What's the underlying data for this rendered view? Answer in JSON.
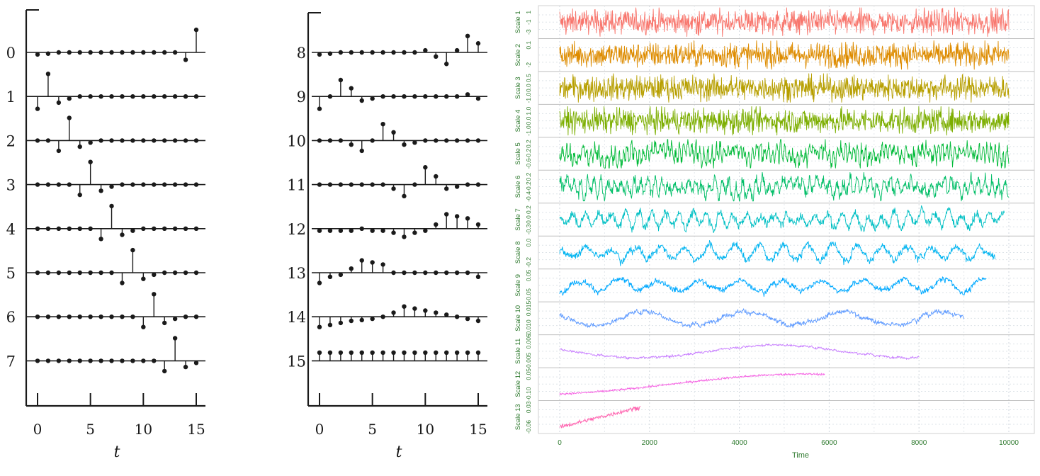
{
  "chart_data": [
    {
      "type": "stem",
      "xlabel": "t",
      "x_ticks": [
        0,
        5,
        10,
        15
      ],
      "x": [
        0,
        1,
        2,
        3,
        4,
        5,
        6,
        7,
        8,
        9,
        10,
        11,
        12,
        13,
        14,
        15
      ],
      "series": [
        {
          "label": "0",
          "values": [
            -0.05,
            -0.03,
            0,
            0,
            0,
            0,
            0,
            0,
            0,
            0,
            0,
            0,
            0,
            0,
            -0.18,
            0.55
          ]
        },
        {
          "label": "1",
          "values": [
            -0.3,
            0.55,
            -0.15,
            -0.05,
            0,
            0,
            0,
            0,
            0,
            0,
            0,
            0,
            0,
            0,
            0,
            0
          ]
        },
        {
          "label": "2",
          "values": [
            0,
            0,
            -0.25,
            0.55,
            -0.15,
            -0.05,
            0,
            0,
            0,
            0,
            0,
            0,
            0,
            0,
            0,
            0
          ]
        },
        {
          "label": "3",
          "values": [
            0,
            0,
            0,
            0,
            -0.25,
            0.55,
            -0.15,
            -0.05,
            0,
            0,
            0,
            0,
            0,
            0,
            0,
            0
          ]
        },
        {
          "label": "4",
          "values": [
            0,
            0,
            0,
            0,
            0,
            0,
            -0.25,
            0.55,
            -0.15,
            -0.05,
            0,
            0,
            0,
            0,
            0,
            0
          ]
        },
        {
          "label": "5",
          "values": [
            0,
            0,
            0,
            0,
            0,
            0,
            0,
            0,
            -0.25,
            0.55,
            -0.15,
            -0.05,
            0,
            0,
            0,
            0
          ]
        },
        {
          "label": "6",
          "values": [
            0,
            0,
            0,
            0,
            0,
            0,
            0,
            0,
            0,
            0,
            -0.25,
            0.55,
            -0.15,
            -0.05,
            0,
            0
          ]
        },
        {
          "label": "7",
          "values": [
            0,
            0,
            0,
            0,
            0,
            0,
            0,
            0,
            0,
            0,
            0,
            0,
            -0.25,
            0.55,
            -0.15,
            -0.05
          ]
        }
      ]
    },
    {
      "type": "stem",
      "xlabel": "t",
      "x_ticks": [
        0,
        5,
        10,
        15
      ],
      "x": [
        0,
        1,
        2,
        3,
        4,
        5,
        6,
        7,
        8,
        9,
        10,
        11,
        12,
        13,
        14,
        15
      ],
      "series": [
        {
          "label": "8",
          "values": [
            -0.05,
            -0.03,
            0,
            0,
            0,
            0,
            0,
            0,
            0,
            0,
            0.05,
            -0.1,
            -0.28,
            0.05,
            0.4,
            0.22
          ]
        },
        {
          "label": "9",
          "values": [
            -0.3,
            0,
            0.4,
            0.2,
            -0.1,
            -0.05,
            0,
            0,
            0,
            0,
            0,
            0,
            0,
            0,
            0.05,
            -0.05
          ]
        },
        {
          "label": "10",
          "values": [
            0,
            0,
            0,
            -0.1,
            -0.25,
            0,
            0.4,
            0.2,
            -0.1,
            -0.05,
            0,
            0,
            0,
            0,
            0,
            0
          ]
        },
        {
          "label": "11",
          "values": [
            0,
            0,
            0,
            0,
            0,
            0,
            0,
            -0.1,
            -0.28,
            0,
            0.42,
            0.2,
            -0.1,
            -0.05,
            0,
            0
          ]
        },
        {
          "label": "12",
          "values": [
            -0.05,
            -0.05,
            -0.05,
            -0.05,
            0,
            -0.05,
            -0.05,
            -0.1,
            -0.2,
            -0.1,
            -0.05,
            0.1,
            0.35,
            0.3,
            0.25,
            0.1
          ]
        },
        {
          "label": "13",
          "values": [
            -0.25,
            -0.1,
            -0.05,
            0.1,
            0.3,
            0.25,
            0.2,
            0,
            0,
            0,
            0,
            0,
            0,
            0,
            0,
            -0.1
          ]
        },
        {
          "label": "14",
          "values": [
            -0.25,
            -0.2,
            -0.15,
            -0.1,
            -0.08,
            -0.05,
            0,
            0.1,
            0.25,
            0.2,
            0.15,
            0.1,
            0.05,
            0,
            -0.05,
            -0.1
          ]
        },
        {
          "label": "15",
          "values": [
            0.2,
            0.2,
            0.2,
            0.2,
            0.2,
            0.2,
            0.2,
            0.2,
            0.2,
            0.2,
            0.2,
            0.2,
            0.2,
            0.2,
            0.2,
            0.2
          ]
        }
      ]
    },
    {
      "type": "line",
      "xlabel": "Time",
      "xlim": [
        0,
        10000
      ],
      "x_ticks": [
        "0",
        "2000",
        "4000",
        "6000",
        "8000",
        "10000"
      ],
      "grid": true,
      "series": [
        {
          "name": "Scale 1",
          "color": "#f8766d",
          "length": 10000,
          "period": 0,
          "noise": 1.0,
          "y_ticks": [
            "1",
            "-1",
            "-3"
          ]
        },
        {
          "name": "Scale 2",
          "color": "#de8c00",
          "length": 10000,
          "period": 0,
          "noise": 1.0,
          "y_ticks": [
            "0.1",
            "-2"
          ]
        },
        {
          "name": "Scale 3",
          "color": "#b79f00",
          "length": 10000,
          "period": 0,
          "noise": 0.9,
          "y_ticks": [
            "0.5",
            "0.0",
            "-1.0"
          ]
        },
        {
          "name": "Scale 4",
          "color": "#7cae00",
          "length": 10000,
          "period": 0,
          "noise": 0.9,
          "y_ticks": [
            "1.0",
            "0.0",
            "-1.0"
          ]
        },
        {
          "name": "Scale 5",
          "color": "#00ba38",
          "length": 10000,
          "period": 90,
          "noise": 0.8,
          "y_ticks": [
            "0.2",
            "-0.2",
            "-0.6"
          ]
        },
        {
          "name": "Scale 6",
          "color": "#00be67",
          "length": 10000,
          "period": 150,
          "noise": 0.7,
          "y_ticks": [
            "0.2",
            "-0.2",
            "-0.4"
          ]
        },
        {
          "name": "Scale 7",
          "color": "#00bfc4",
          "length": 9900,
          "period": 300,
          "noise": 0.5,
          "y_ticks": [
            "0.2",
            "0.0",
            "-0.3"
          ]
        },
        {
          "name": "Scale 8",
          "color": "#00b4f0",
          "length": 9700,
          "period": 550,
          "noise": 0.4,
          "y_ticks": [
            "0.0",
            "-0.2"
          ]
        },
        {
          "name": "Scale 9",
          "color": "#00a9ff",
          "length": 9500,
          "period": 900,
          "noise": 0.3,
          "y_ticks": [
            "0.05",
            "-0.05"
          ]
        },
        {
          "name": "Scale 10",
          "color": "#619cff",
          "length": 9000,
          "period": 2200,
          "noise": 0.25,
          "y_ticks": [
            "0.015",
            "-0.010"
          ]
        },
        {
          "name": "Scale 11",
          "color": "#c77cff",
          "length": 8000,
          "period": 6000,
          "noise": 0.12,
          "y_ticks": [
            "0.005",
            "-0.005"
          ]
        },
        {
          "name": "Scale 12",
          "color": "#f564e3",
          "length": 5900,
          "period": 0,
          "noise": 0.05,
          "y_ticks": [
            "0.05",
            "-0.10"
          ]
        },
        {
          "name": "Scale 13",
          "color": "#ff64b0",
          "length": 1800,
          "period": 0,
          "noise": 0.08,
          "y_ticks": [
            "0.03",
            "-0.06"
          ]
        }
      ]
    }
  ]
}
